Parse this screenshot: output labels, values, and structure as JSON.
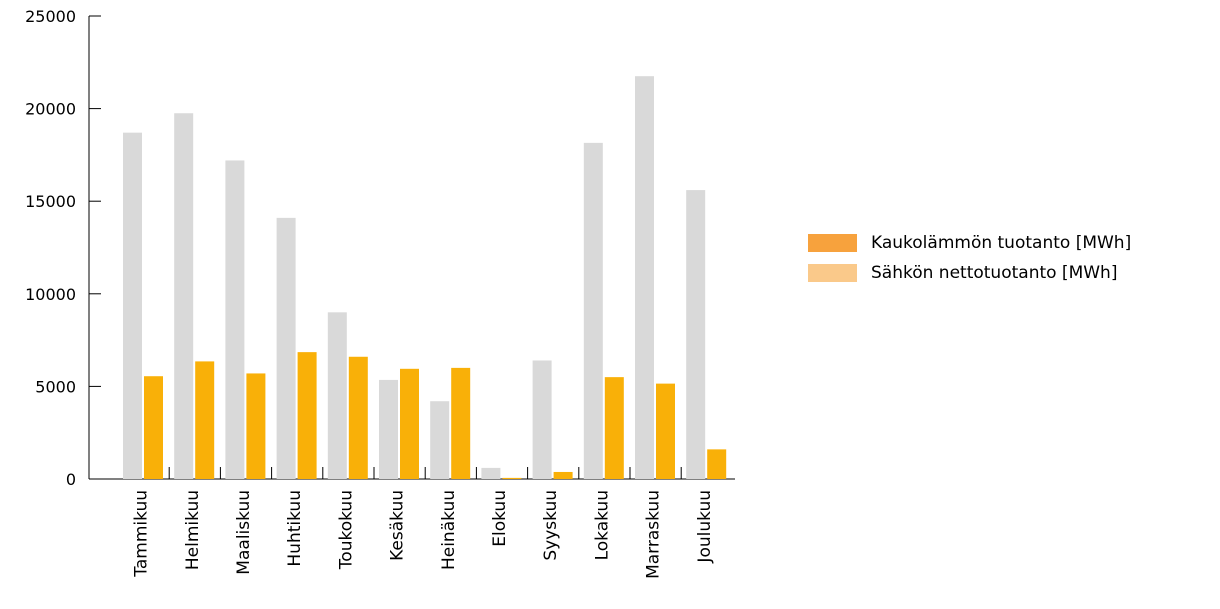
{
  "chart_data": {
    "type": "bar",
    "categories": [
      "Tammikuu",
      "Helmikuu",
      "Maaliskuu",
      "Huhtikuu",
      "Toukokuu",
      "Kesäkuu",
      "Heinäkuu",
      "Elokuu",
      "Syyskuu",
      "Lokakuu",
      "Marraskuu",
      "Joulukuu"
    ],
    "series": [
      {
        "values": [
          18700,
          19750,
          17200,
          14100,
          9000,
          5350,
          4200,
          600,
          6400,
          18150,
          21750,
          15600
        ],
        "color": "#d9d9d9"
      },
      {
        "values": [
          5550,
          6350,
          5700,
          6850,
          6600,
          5950,
          6000,
          60,
          380,
          5500,
          5150,
          1600
        ],
        "color": "#f9b008"
      }
    ],
    "ylim": [
      0,
      25000
    ],
    "yticks": [
      0,
      5000,
      10000,
      15000,
      20000,
      25000
    ],
    "grid": false,
    "legend": {
      "placement": "right",
      "entries": [
        {
          "label": "Kaukolämmön tuotanto [MWh]",
          "color": "#f7a23d"
        },
        {
          "label": "Sähkön nettotuotanto [MWh]",
          "color": "#fac98a"
        }
      ]
    }
  }
}
